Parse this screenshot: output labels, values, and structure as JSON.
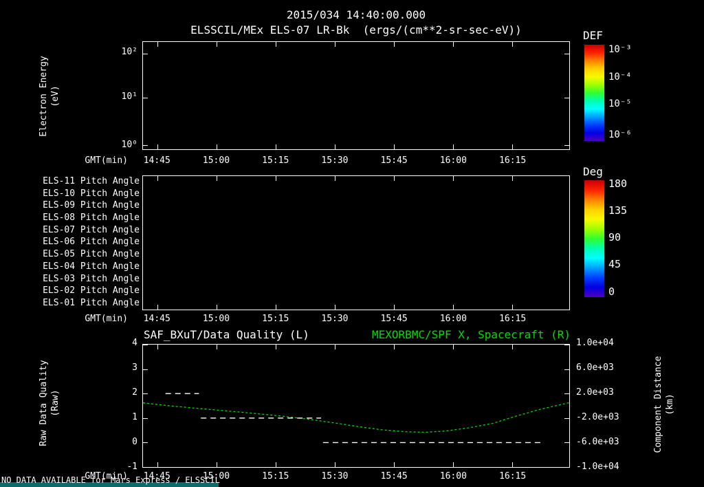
{
  "colors": {
    "background": "#000000",
    "foreground": "#ffffff",
    "accent_green": "#00dd00",
    "footer_highlight": "#0d6a6a",
    "rainbow": [
      "#c80000",
      "#ff2000",
      "#ff8000",
      "#ffd000",
      "#f8f800",
      "#a0ff00",
      "#30ff30",
      "#00ffb0",
      "#00ffff",
      "#00a0ff",
      "#0040ff",
      "#0000e0",
      "#5000c0"
    ]
  },
  "header": {
    "timestamp": "2015/034 14:40:00.000",
    "instrument_title": "ELSSCIL/MEx ELS-07 LR-Bk  (ergs/(cm**2-sr-sec-eV))"
  },
  "time_axis": {
    "label": "GMT(min)",
    "domain": [
      1.3,
      109.5
    ],
    "ticks": [
      {
        "label": "14:45",
        "t": 5
      },
      {
        "label": "15:00",
        "t": 20
      },
      {
        "label": "15:15",
        "t": 35
      },
      {
        "label": "15:30",
        "t": 50
      },
      {
        "label": "15:45",
        "t": 65
      },
      {
        "label": "16:00",
        "t": 80
      },
      {
        "label": "16:15",
        "t": 95
      }
    ]
  },
  "energy_panel": {
    "ylabel_line1": "Electron Energy",
    "ylabel_line2": "(eV)",
    "yticks": [
      {
        "label": "10²",
        "f": 0.11
      },
      {
        "label": "10¹",
        "f": 0.52
      },
      {
        "label": "10⁰",
        "f": 0.96
      }
    ],
    "colorbar": {
      "title": "DEF",
      "ticks": [
        {
          "label": "10⁻³",
          "f": 0.06
        },
        {
          "label": "10⁻⁴",
          "f": 0.34
        },
        {
          "label": "10⁻⁵",
          "f": 0.62
        },
        {
          "label": "10⁻⁶",
          "f": 0.94
        }
      ]
    }
  },
  "pitch_panel": {
    "row_labels": [
      "ELS-11 Pitch Angle",
      "ELS-10 Pitch Angle",
      "ELS-09 Pitch Angle",
      "ELS-08 Pitch Angle",
      "ELS-07 Pitch Angle",
      "ELS-06 Pitch Angle",
      "ELS-05 Pitch Angle",
      "ELS-04 Pitch Angle",
      "ELS-03 Pitch Angle",
      "ELS-02 Pitch Angle",
      "ELS-01 Pitch Angle"
    ],
    "colorbar": {
      "title": "Deg",
      "ticks": [
        {
          "label": "180",
          "f": 0.03
        },
        {
          "label": "135",
          "f": 0.26
        },
        {
          "label": "90",
          "f": 0.49
        },
        {
          "label": "45",
          "f": 0.72
        },
        {
          "label": "0",
          "f": 0.95
        }
      ]
    }
  },
  "chart_data": {
    "type": "line",
    "title_left": "SAF_BXuT/Data Quality (L)",
    "title_right": "MEXORBMC/SPF X, Spacecraft (R)",
    "xlabel": "GMT(min)",
    "x_tick_labels": [
      "14:45",
      "15:00",
      "15:15",
      "15:30",
      "15:45",
      "16:00",
      "16:15"
    ],
    "left_axis": {
      "label_line1": "Raw Data Quality",
      "label_line2": "(Raw)",
      "ticks": [
        "4",
        "3",
        "2",
        "1",
        "0",
        "-1"
      ],
      "range": [
        -1,
        4
      ]
    },
    "right_axis": {
      "label_line1": "Component Distance",
      "label_line2": "(km)",
      "ticks": [
        "1.0e+04",
        "6.0e+03",
        "2.0e+03",
        "-2.0e+03",
        "-6.0e+03",
        "-1.0e+04"
      ],
      "range": [
        -10000,
        10000
      ]
    },
    "series": [
      {
        "name": "MEXORBMC/SPF X, Spacecraft",
        "axis": "right",
        "color": "#00dd00",
        "line_style": "dashed",
        "x_minutes_after_1440": [
          1.3,
          8,
          15,
          22,
          29,
          36,
          43,
          50,
          56,
          62,
          68,
          73,
          78,
          84,
          90,
          96,
          102,
          106,
          109.5
        ],
        "y_km": [
          480,
          0,
          -400,
          -800,
          -1200,
          -1640,
          -2160,
          -2800,
          -3400,
          -3920,
          -4240,
          -4320,
          -4120,
          -3600,
          -2880,
          -1680,
          -600,
          0,
          520
        ]
      },
      {
        "name": "SAF_BXuT/Data Quality",
        "axis": "left",
        "color": "#ffffff",
        "line_style": "dashed",
        "segments": [
          {
            "value": 2,
            "t_start": 7,
            "t_end": 15.5
          },
          {
            "value": 1,
            "t_start": 16,
            "t_end": 46.5
          },
          {
            "value": 0,
            "t_start": 47,
            "t_end": 103
          }
        ]
      }
    ]
  },
  "footer": {
    "message": "NO DATA AVAILABLE for Mars Express / ELSSCIL"
  }
}
